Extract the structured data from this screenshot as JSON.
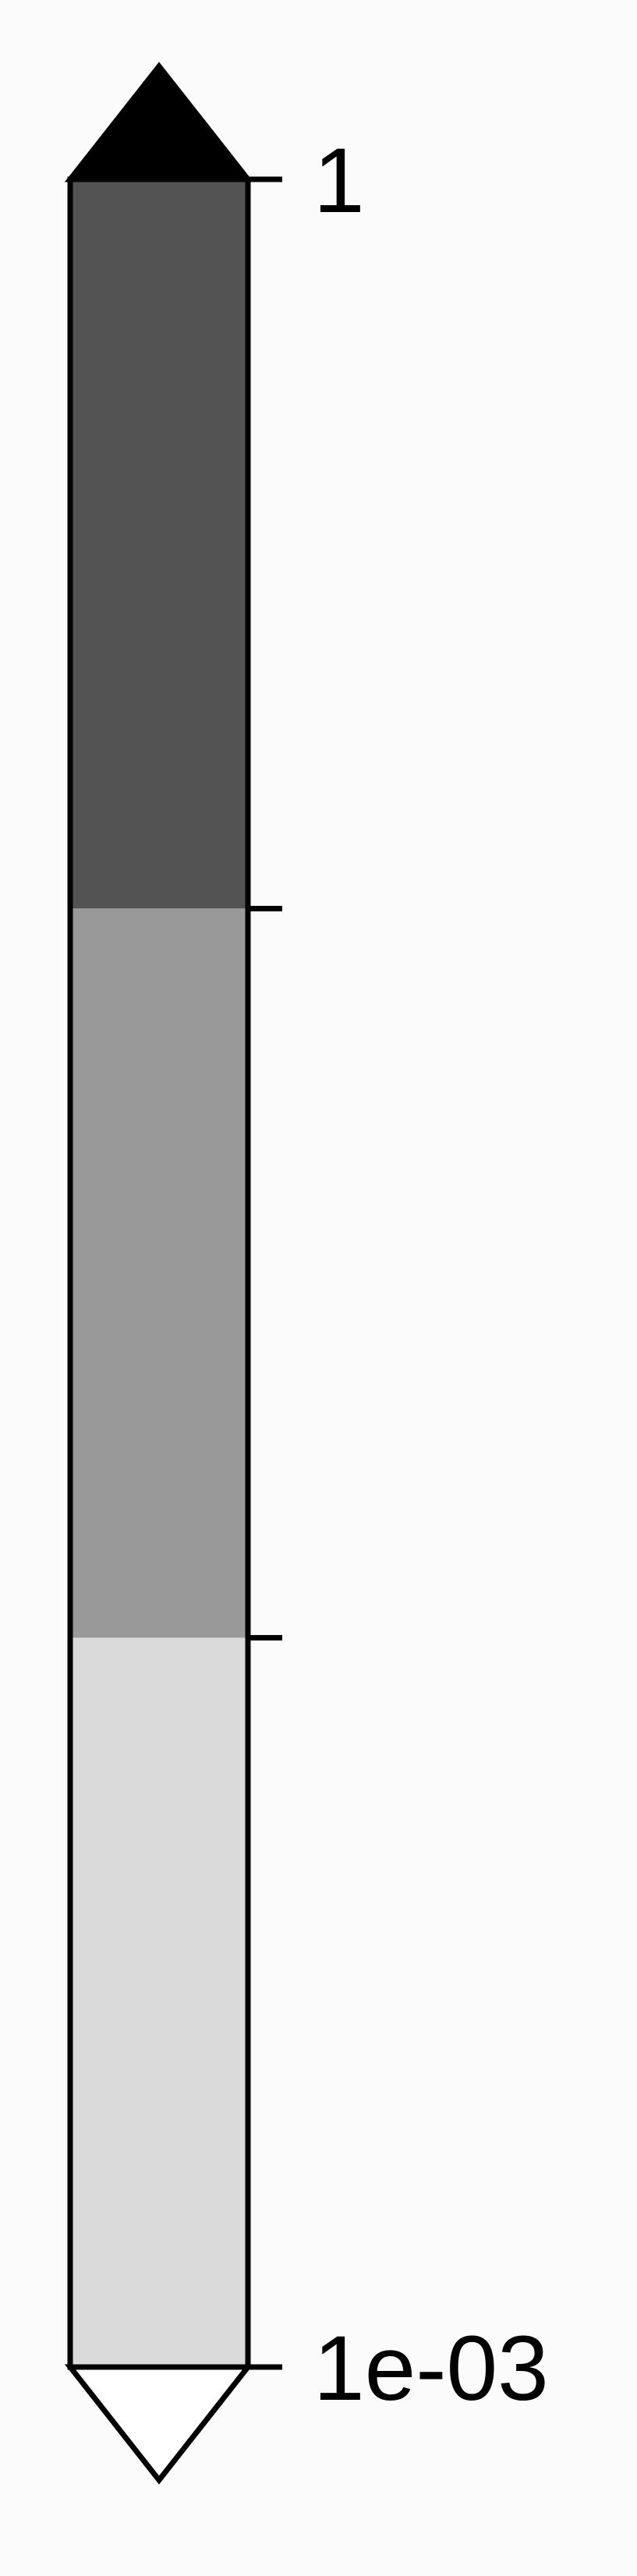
{
  "chart_data": {
    "type": "colorbar",
    "orientation": "vertical",
    "scale": "log",
    "range": [
      0.001,
      1
    ],
    "bins": [
      {
        "from": 0.1,
        "to": 1,
        "color": "#535353"
      },
      {
        "from": 0.01,
        "to": 0.1,
        "color": "#999999"
      },
      {
        "from": 0.001,
        "to": 0.01,
        "color": "#dadada"
      }
    ],
    "ticks": [
      {
        "value": 1,
        "label": "1"
      },
      {
        "value": 0.1,
        "label": ""
      },
      {
        "value": 0.01,
        "label": ""
      },
      {
        "value": 0.001,
        "label": "1e-03"
      }
    ],
    "extend": {
      "over": {
        "color": "#000000"
      },
      "under": {
        "color": "#ffffff"
      }
    },
    "outline_color": "#000000",
    "background_color": "#fbfbfb"
  }
}
